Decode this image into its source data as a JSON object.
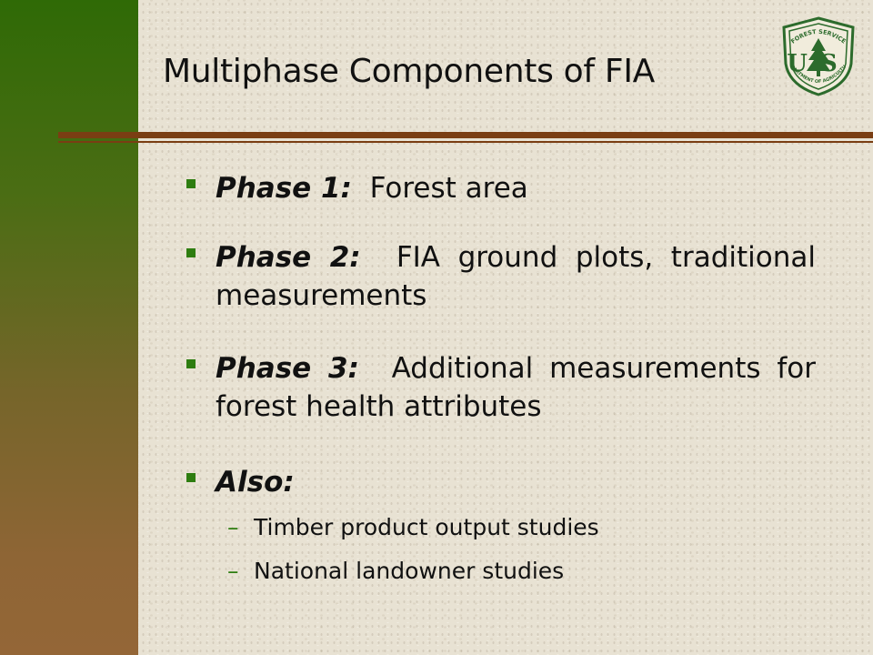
{
  "slide": {
    "title": "Multiphase Components of FIA",
    "logo": {
      "top_text": "FOREST SERVICE",
      "center_text": "US",
      "bottom_text": "DEPARTMENT OF AGRICULTURE",
      "icon": "tree-icon"
    },
    "bullets": [
      {
        "label": "Phase 1:",
        "text": "Forest area"
      },
      {
        "label": "Phase 2:",
        "text": "FIA ground plots, traditional measurements"
      },
      {
        "label": "Phase 3:",
        "text": "Additional measurements for forest health attributes"
      },
      {
        "label": "Also:",
        "text": ""
      }
    ],
    "sub_bullets": [
      {
        "dash": "–",
        "text": "Timber product output studies"
      },
      {
        "dash": "–",
        "text": "National landowner studies"
      }
    ]
  },
  "colors": {
    "bullet": "#2e7d10",
    "rule": "#7a3e13",
    "sidebar_top": "#2f6a06",
    "sidebar_bottom": "#946637",
    "background": "#e8e2d3"
  }
}
